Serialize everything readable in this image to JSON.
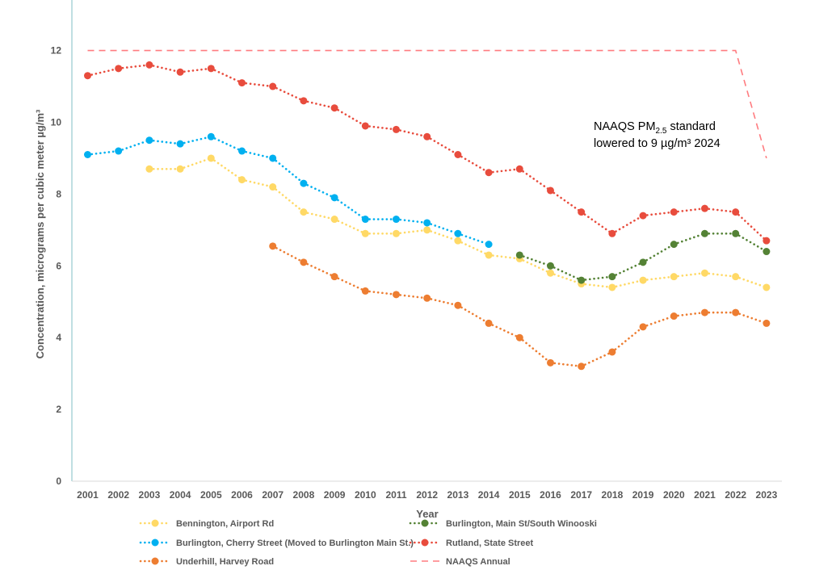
{
  "chart_data": {
    "type": "line",
    "title": "",
    "xlabel": "Year",
    "ylabel": "Concentration, micrograms per cubic meter µg/m³",
    "ylim": [
      0,
      13
    ],
    "yticks": [
      0,
      2,
      4,
      6,
      8,
      10,
      12
    ],
    "grid": false,
    "legend_position": "bottom",
    "categories": [
      "2001",
      "2002",
      "2003",
      "2004",
      "2005",
      "2006",
      "2007",
      "2008",
      "2009",
      "2010",
      "2011",
      "2012",
      "2013",
      "2014",
      "2015",
      "2016",
      "2017",
      "2018",
      "2019",
      "2020",
      "2021",
      "2022",
      "2023"
    ],
    "series": [
      {
        "name": "Bennington, Airport Rd",
        "color": "#FFD966",
        "style": "dotted-marker",
        "values": [
          null,
          null,
          8.7,
          8.7,
          9.0,
          8.4,
          8.2,
          7.5,
          7.3,
          6.9,
          6.9,
          7.0,
          6.7,
          6.3,
          6.2,
          5.8,
          5.5,
          5.4,
          5.6,
          5.7,
          5.8,
          5.7,
          5.4
        ]
      },
      {
        "name": "Burlington, Main St/South Winooski",
        "color": "#548235",
        "style": "dotted-marker",
        "values": [
          null,
          null,
          null,
          null,
          null,
          null,
          null,
          null,
          null,
          null,
          null,
          null,
          null,
          null,
          6.3,
          6.0,
          5.6,
          5.7,
          6.1,
          6.6,
          6.9,
          6.9,
          6.4
        ]
      },
      {
        "name": "Burlington, Cherry Street (Moved to Burlington Main St.)",
        "color": "#00B0F0",
        "style": "dotted-marker",
        "values": [
          9.1,
          9.2,
          9.5,
          9.4,
          9.6,
          9.2,
          9.0,
          8.3,
          7.9,
          7.3,
          7.3,
          7.2,
          6.9,
          6.6,
          null,
          null,
          null,
          null,
          null,
          null,
          null,
          null,
          null
        ]
      },
      {
        "name": "Rutland, State Street",
        "color": "#E84C3D",
        "style": "dotted-marker",
        "values": [
          11.3,
          11.5,
          11.6,
          11.4,
          11.5,
          11.1,
          11.0,
          10.6,
          10.4,
          9.9,
          9.8,
          9.6,
          9.1,
          8.6,
          8.7,
          8.1,
          7.5,
          6.9,
          7.4,
          7.5,
          7.6,
          7.5,
          6.7
        ]
      },
      {
        "name": "Underhill, Harvey Road",
        "color": "#ED7D31",
        "style": "dotted-marker",
        "values": [
          null,
          null,
          null,
          null,
          null,
          null,
          6.55,
          6.1,
          5.7,
          5.3,
          5.2,
          5.1,
          4.9,
          4.4,
          4.0,
          3.3,
          3.2,
          3.6,
          4.3,
          4.6,
          4.7,
          4.7,
          4.4
        ]
      },
      {
        "name": "NAAQS Annual",
        "color": "#FF7C80",
        "style": "dashed",
        "values": [
          12,
          12,
          12,
          12,
          12,
          12,
          12,
          12,
          12,
          12,
          12,
          12,
          12,
          12,
          12,
          12,
          12,
          12,
          12,
          12,
          12,
          12,
          9
        ]
      }
    ],
    "annotation": {
      "line1_prefix": "NAAQS PM",
      "line1_sub": "2.5",
      "line1_suffix": " standard",
      "line2": "lowered to 9 µg/m³ 2024"
    }
  }
}
